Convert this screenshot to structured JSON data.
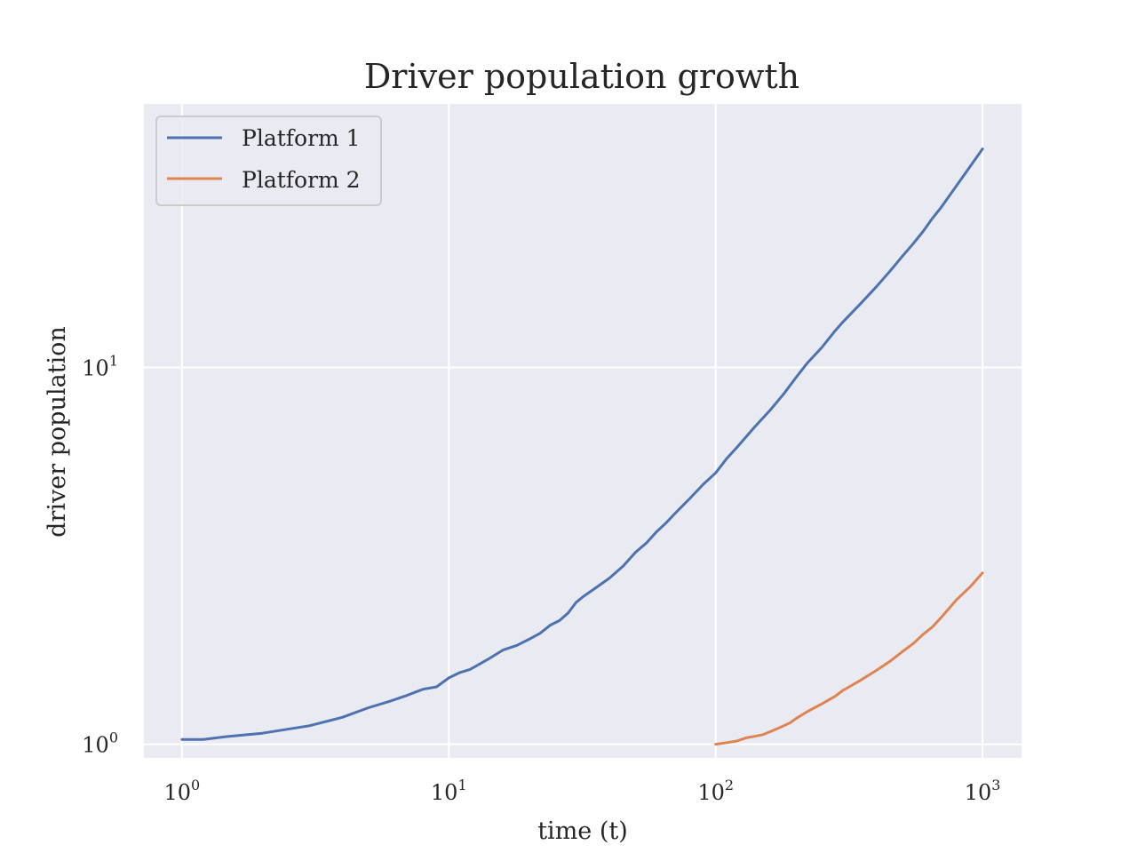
{
  "chart_data": {
    "type": "line",
    "title": "Driver population growth",
    "xlabel": "time (t)",
    "ylabel": "driver population",
    "xscale": "log",
    "yscale": "log",
    "xlim": [
      0.72,
      1400
    ],
    "ylim": [
      0.92,
      50
    ],
    "grid": true,
    "legend_position": "top-left",
    "background_color": "#eaeaf2",
    "x_ticks": [
      {
        "base": "10",
        "exp": "0",
        "value": 1
      },
      {
        "base": "10",
        "exp": "1",
        "value": 10
      },
      {
        "base": "10",
        "exp": "2",
        "value": 100
      },
      {
        "base": "10",
        "exp": "3",
        "value": 1000
      }
    ],
    "y_ticks": [
      {
        "base": "10",
        "exp": "0",
        "value": 1
      },
      {
        "base": "10",
        "exp": "1",
        "value": 10
      }
    ],
    "series": [
      {
        "name": "Platform 1",
        "color": "#4c72b0",
        "x": [
          1,
          1.2,
          1.5,
          2,
          3,
          4,
          5,
          6,
          7,
          8,
          9,
          10,
          11,
          12,
          14,
          16,
          18,
          20,
          22,
          24,
          26,
          28,
          30,
          32,
          35,
          40,
          45,
          50,
          55,
          60,
          65,
          70,
          75,
          80,
          90,
          100,
          110,
          120,
          140,
          160,
          180,
          200,
          220,
          250,
          280,
          300,
          350,
          400,
          450,
          500,
          550,
          600,
          650,
          700,
          800,
          900,
          1000
        ],
        "y": [
          1.03,
          1.03,
          1.05,
          1.07,
          1.12,
          1.18,
          1.25,
          1.3,
          1.35,
          1.4,
          1.42,
          1.5,
          1.55,
          1.58,
          1.68,
          1.78,
          1.83,
          1.9,
          1.97,
          2.07,
          2.13,
          2.23,
          2.38,
          2.47,
          2.58,
          2.76,
          2.97,
          3.23,
          3.42,
          3.66,
          3.86,
          4.08,
          4.29,
          4.49,
          4.9,
          5.25,
          5.73,
          6.13,
          6.95,
          7.7,
          8.51,
          9.4,
          10.25,
          11.3,
          12.49,
          13.2,
          14.79,
          16.37,
          18.0,
          19.7,
          21.3,
          23.0,
          24.9,
          26.6,
          30.4,
          34.2,
          38.0
        ]
      },
      {
        "name": "Platform 2",
        "color": "#dd8452",
        "x": [
          100,
          110,
          120,
          130,
          140,
          150,
          160,
          170,
          180,
          190,
          200,
          220,
          250,
          280,
          300,
          350,
          400,
          450,
          500,
          550,
          600,
          650,
          700,
          800,
          900,
          1000
        ],
        "y": [
          1.0,
          1.01,
          1.02,
          1.04,
          1.05,
          1.06,
          1.08,
          1.1,
          1.12,
          1.14,
          1.17,
          1.22,
          1.28,
          1.34,
          1.39,
          1.48,
          1.57,
          1.66,
          1.76,
          1.85,
          1.96,
          2.05,
          2.17,
          2.42,
          2.62,
          2.85
        ]
      }
    ]
  }
}
